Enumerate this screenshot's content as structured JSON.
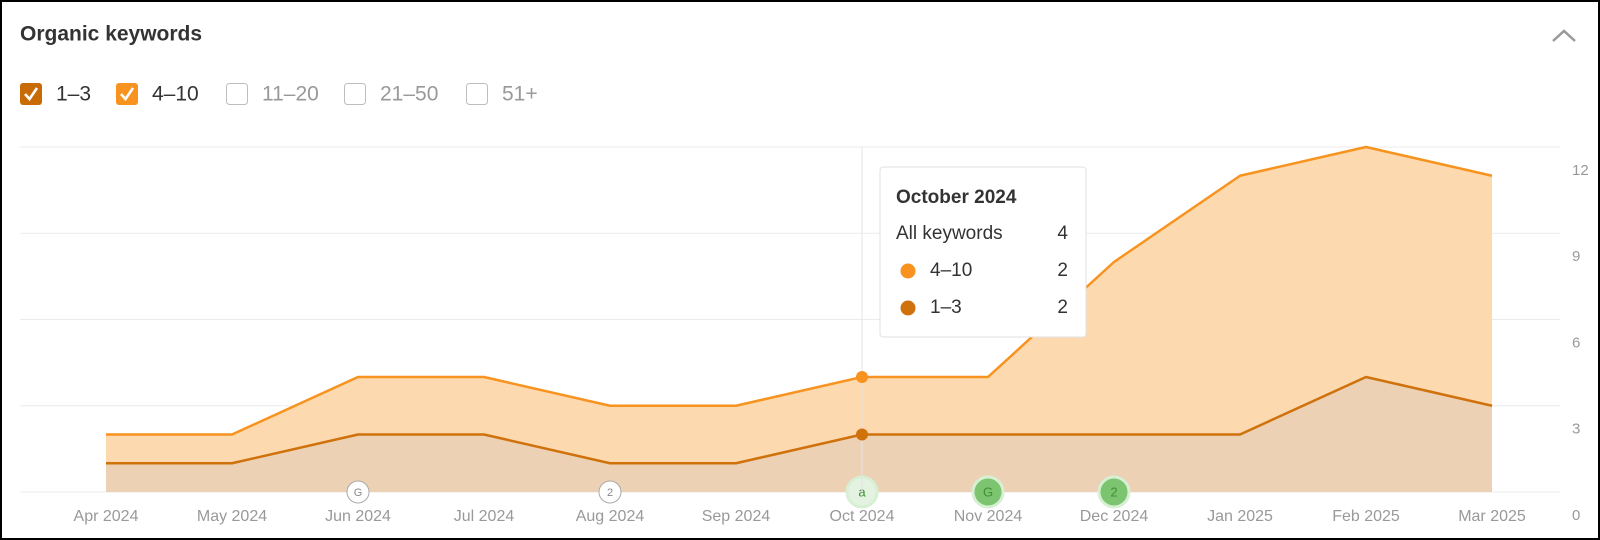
{
  "header": {
    "title": "Organic keywords"
  },
  "filters": [
    {
      "label": "1–3",
      "checked": true,
      "color": "#c96b05"
    },
    {
      "label": "4–10",
      "checked": true,
      "color": "#f7931e"
    },
    {
      "label": "11–20",
      "checked": false,
      "color": "#bdbdbd"
    },
    {
      "label": "21–50",
      "checked": false,
      "color": "#bdbdbd"
    },
    {
      "label": "51+",
      "checked": false,
      "color": "#bdbdbd"
    }
  ],
  "chart_data": {
    "type": "stacked-area",
    "categories": [
      "Apr 2024",
      "May 2024",
      "Jun 2024",
      "Jul 2024",
      "Aug 2024",
      "Sep 2024",
      "Oct 2024",
      "Nov 2024",
      "Dec 2024",
      "Jan 2025",
      "Feb 2025",
      "Mar 2025"
    ],
    "series": [
      {
        "name": "1–3",
        "color": "#cf720c",
        "fill": "#ecd1b4",
        "values": [
          1,
          1,
          2,
          2,
          1,
          1,
          2,
          2,
          2,
          2,
          4,
          3
        ]
      },
      {
        "name": "4–10",
        "color": "#f7931e",
        "fill": "#fdd9b0",
        "values": [
          1,
          1,
          2,
          2,
          2,
          2,
          2,
          2,
          6,
          9,
          8,
          8
        ]
      }
    ],
    "ylim": [
      0,
      12
    ],
    "yticks": [
      0,
      3,
      6,
      9,
      12
    ],
    "grid": true,
    "y_axis_side": "right",
    "annotations": [
      {
        "category": "Jun 2024",
        "label": "G",
        "color": "#ffffff"
      },
      {
        "category": "Aug 2024",
        "label": "2",
        "color": "#ffffff"
      },
      {
        "category": "Oct 2024",
        "label": "a",
        "color": "#e3f2e1"
      },
      {
        "category": "Nov 2024",
        "label": "G",
        "color": "#7cc46f"
      },
      {
        "category": "Dec 2024",
        "label": "2",
        "color": "#7cc46f"
      }
    ],
    "tooltip": {
      "category": "Oct 2024",
      "title": "October 2024",
      "total_label": "All keywords",
      "total": 4,
      "rows": [
        {
          "name": "4–10",
          "value": 2,
          "color": "#f7931e"
        },
        {
          "name": "1–3",
          "value": 2,
          "color": "#cf720c"
        }
      ]
    }
  }
}
